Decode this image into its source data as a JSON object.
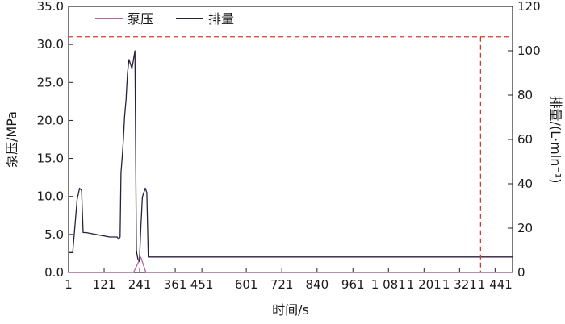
{
  "chart_data": {
    "type": "line",
    "xlabel": "时间/s",
    "ylabel_left": "泵压/MPa",
    "ylabel_right": "排量/(L·min⁻¹)",
    "xlim": [
      1,
      1500
    ],
    "x_ticks": [
      1,
      121,
      241,
      361,
      451,
      601,
      721,
      840,
      961,
      1081,
      1201,
      1321,
      1441
    ],
    "x_tick_labels": [
      "1",
      "121",
      "241",
      "361",
      "451",
      "601",
      "721",
      "840",
      "961",
      "1 081",
      "1 201",
      "1 321",
      "1 441"
    ],
    "ylim_left": [
      0,
      35
    ],
    "y_ticks_left": [
      0,
      5,
      10,
      15,
      20,
      25,
      30,
      35
    ],
    "y_tick_labels_left": [
      "0.0",
      "5.0",
      "10.0",
      "15.0",
      "20.0",
      "25.0",
      "30.0",
      "35.0"
    ],
    "ylim_right": [
      0,
      120
    ],
    "y_ticks_right": [
      0,
      20,
      40,
      60,
      80,
      100,
      120
    ],
    "y_tick_labels_right": [
      "0",
      "20",
      "40",
      "60",
      "80",
      "100",
      "120"
    ],
    "legend": {
      "placement": "top-left",
      "entries": [
        "泵压",
        "排量"
      ]
    },
    "reference_lines": {
      "horizontal_left_value": 31,
      "vertical_x": 1392,
      "color": "#d93a35"
    },
    "series": [
      {
        "name": "泵压",
        "axis": "left",
        "color": "#b463a9",
        "x": [
          1,
          220,
          245,
          262,
          270,
          285,
          300,
          310,
          320,
          335,
          340,
          350,
          360,
          375,
          390,
          410,
          425,
          440,
          455,
          470,
          478,
          485,
          490,
          495,
          500,
          503,
          505,
          510,
          560,
          580,
          600,
          630,
          650,
          660,
          675,
          680,
          683,
          686,
          690,
          700,
          720,
          745,
          760,
          770,
          780,
          800,
          813,
          818,
          820,
          824,
          828,
          832,
          836,
          845,
          860,
          880,
          895,
          905,
          915,
          930,
          945,
          955,
          960,
          980,
          1000,
          1030,
          1060,
          1090,
          1110,
          1130,
          1140,
          1150,
          1160,
          1170,
          1180,
          1190,
          1220,
          1240,
          1260,
          1280,
          1300,
          1320,
          1340,
          1365,
          1382,
          1393,
          1395,
          1397,
          1400,
          1420,
          1440,
          1460,
          1470,
          1480,
          1490,
          1500
        ],
        "y": [
          0,
          0,
          2,
          0,
          0,
          0,
          0,
          0,
          0,
          0,
          0,
          0,
          0,
          0,
          0,
          0,
          0,
          0,
          0,
          0,
          0,
          0,
          0,
          0,
          0,
          0,
          0,
          0,
          0,
          0,
          0,
          0,
          0,
          0,
          0,
          0,
          0,
          0,
          0,
          0,
          0,
          0,
          0,
          0,
          0,
          0,
          0,
          0,
          0,
          0,
          0,
          0,
          0,
          0,
          0,
          0,
          0,
          0,
          0,
          0,
          0,
          0,
          0,
          0,
          0,
          0,
          0,
          0,
          0,
          0,
          0,
          0,
          0,
          0,
          0,
          0,
          0,
          0,
          0,
          0,
          0,
          0,
          0,
          0,
          0,
          0,
          0,
          0,
          0,
          0,
          0,
          0,
          0,
          0,
          0,
          0
        ]
      },
      {
        "name": "排量",
        "axis": "right",
        "color": "#2a1f3d",
        "x": [
          1,
          15,
          30,
          38,
          45,
          50,
          55,
          60,
          100,
          140,
          150,
          158,
          165,
          170,
          175,
          178,
          182,
          186,
          190,
          195,
          200,
          205,
          210,
          215,
          220,
          225,
          230,
          232,
          235,
          240,
          245,
          250,
          255,
          260,
          265,
          270,
          280,
          290,
          300,
          310,
          320,
          330,
          340,
          350,
          360,
          375,
          390,
          410,
          425,
          440,
          455,
          470,
          478,
          485,
          490,
          495,
          500,
          503,
          505,
          510,
          560,
          580,
          600,
          630,
          650,
          660,
          675,
          680,
          683,
          686,
          690,
          700,
          720,
          745,
          760,
          770,
          780,
          800,
          813,
          818,
          820,
          824,
          828,
          832,
          836,
          845,
          860,
          880,
          895,
          905,
          915,
          930,
          945,
          955,
          960,
          980,
          1000,
          1030,
          1060,
          1090,
          1110,
          1130,
          1140,
          1150,
          1160,
          1170,
          1180,
          1190,
          1220,
          1240,
          1260,
          1280,
          1300,
          1320,
          1340,
          1365,
          1382,
          1393,
          1395,
          1397,
          1400,
          1420,
          1440,
          1460,
          1470,
          1480,
          1490,
          1500
        ],
        "y": [
          9,
          9,
          33,
          38,
          37,
          18,
          18,
          18,
          17,
          16,
          16,
          16,
          16,
          15,
          16,
          45,
          52,
          60,
          70,
          78,
          90,
          96,
          94,
          92,
          96,
          100,
          10,
          8,
          6,
          5,
          20,
          34,
          36,
          38,
          36,
          7,
          7,
          7,
          7,
          7,
          7,
          7,
          7,
          7,
          7,
          7,
          7,
          7,
          7,
          7,
          7,
          7,
          7,
          7,
          7,
          7,
          7,
          7,
          7,
          7,
          7,
          7,
          7,
          7,
          7,
          7,
          7,
          7,
          7,
          7,
          7,
          7,
          7,
          7,
          7,
          7,
          7,
          7,
          7,
          7,
          7,
          7,
          7,
          7,
          7,
          7,
          7,
          7,
          7,
          7,
          7,
          7,
          7,
          7,
          7,
          7,
          7,
          7,
          7,
          7,
          7,
          7,
          7,
          7,
          7,
          7,
          7,
          7,
          7,
          7,
          7,
          7,
          7,
          7,
          7,
          7,
          7,
          7,
          7,
          7,
          7,
          7,
          7,
          7,
          7,
          7,
          7,
          7
        ]
      }
    ]
  }
}
